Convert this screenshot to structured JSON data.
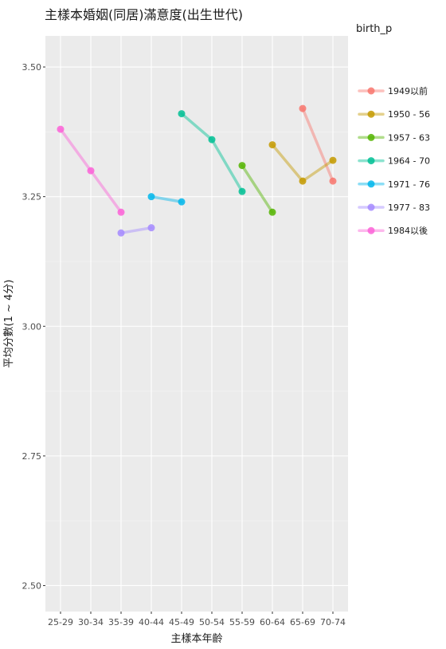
{
  "chart_data": {
    "type": "line",
    "title": "主樣本婚姻(同居)滿意度(出生世代)",
    "xlabel": "主樣本年齡",
    "ylabel": "平均分數(1 ~ 4分)",
    "categories": [
      "25-29",
      "30-34",
      "35-39",
      "40-44",
      "45-49",
      "50-54",
      "55-59",
      "60-64",
      "65-69",
      "70-74"
    ],
    "ylim": [
      2.45,
      3.56
    ],
    "yticks": [
      2.5,
      2.75,
      3.0,
      3.25,
      3.5
    ],
    "ytick_labels": [
      "2.50",
      "2.75",
      "3.00",
      "3.25",
      "3.50"
    ],
    "grid": true,
    "legend": {
      "title": "birth_p",
      "placement": "right"
    },
    "series": [
      {
        "name": "1949以前",
        "color": "#F8766D",
        "points": [
          {
            "x": "65-69",
            "y": 3.42
          },
          {
            "x": "70-74",
            "y": 3.28
          }
        ]
      },
      {
        "name": "1950 - 56",
        "color": "#C49A00",
        "points": [
          {
            "x": "60-64",
            "y": 3.35
          },
          {
            "x": "65-69",
            "y": 3.28
          },
          {
            "x": "70-74",
            "y": 3.32
          }
        ]
      },
      {
        "name": "1957 - 63",
        "color": "#53B400",
        "points": [
          {
            "x": "55-59",
            "y": 3.31
          },
          {
            "x": "60-64",
            "y": 3.22
          }
        ]
      },
      {
        "name": "1964 - 70",
        "color": "#00C094",
        "points": [
          {
            "x": "45-49",
            "y": 3.41
          },
          {
            "x": "50-54",
            "y": 3.36
          },
          {
            "x": "55-59",
            "y": 3.26
          }
        ]
      },
      {
        "name": "1971 - 76",
        "color": "#00B6EB",
        "points": [
          {
            "x": "40-44",
            "y": 3.25
          },
          {
            "x": "45-49",
            "y": 3.24
          }
        ]
      },
      {
        "name": "1977 - 83",
        "color": "#A58AFF",
        "points": [
          {
            "x": "35-39",
            "y": 3.18
          },
          {
            "x": "40-44",
            "y": 3.19
          }
        ]
      },
      {
        "name": "1984以後",
        "color": "#FB61D7",
        "points": [
          {
            "x": "25-29",
            "y": 3.38
          },
          {
            "x": "30-34",
            "y": 3.3
          },
          {
            "x": "35-39",
            "y": 3.22
          }
        ]
      }
    ],
    "colors": {
      "panel_background": "#EBEBEB",
      "grid_major": "#FFFFFF",
      "grid_minor": "#F5F5F5"
    }
  }
}
